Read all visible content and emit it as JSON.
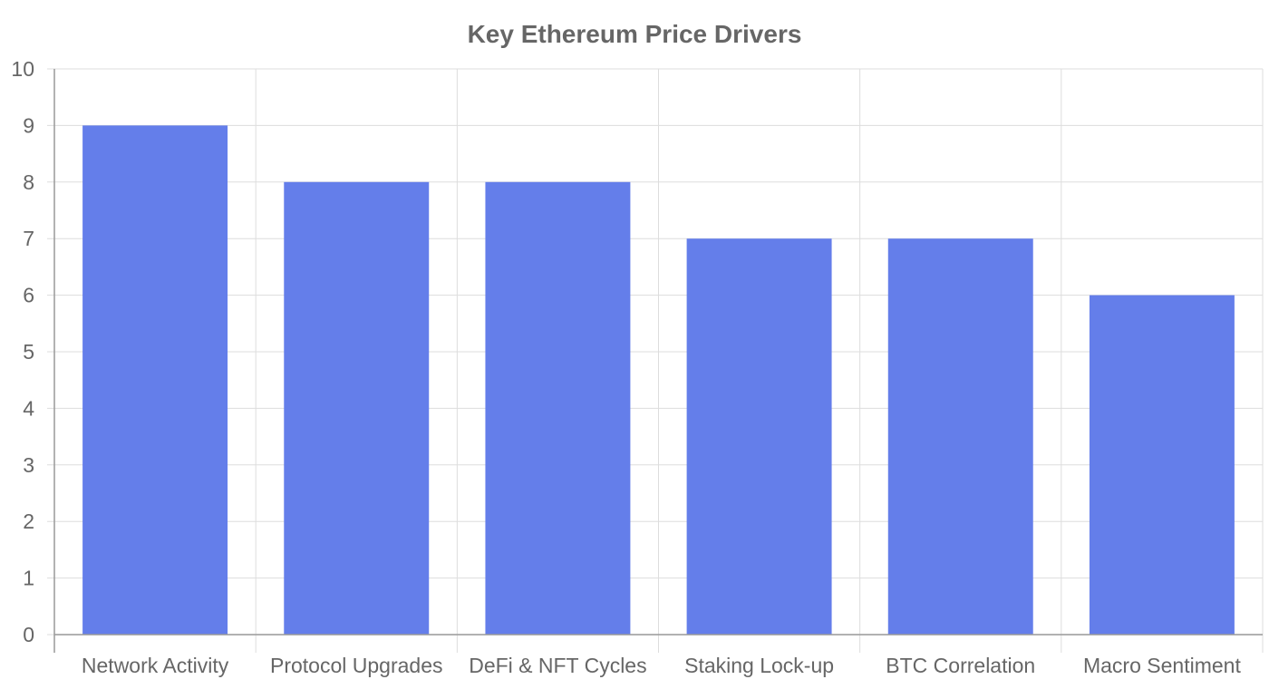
{
  "chart_data": {
    "type": "bar",
    "title": "Key Ethereum Price Drivers",
    "xlabel": "",
    "ylabel": "",
    "categories": [
      "Network Activity",
      "Protocol Upgrades",
      "DeFi & NFT Cycles",
      "Staking Lock-up",
      "BTC Correlation",
      "Macro Sentiment"
    ],
    "values": [
      9,
      8,
      8,
      7,
      7,
      6
    ],
    "ylim": [
      0,
      10
    ],
    "yticks": [
      "0",
      "1",
      "2",
      "3",
      "4",
      "5",
      "6",
      "7",
      "8",
      "9",
      "10"
    ],
    "grid": true,
    "legend": "none",
    "bar_color": "#647eea"
  }
}
